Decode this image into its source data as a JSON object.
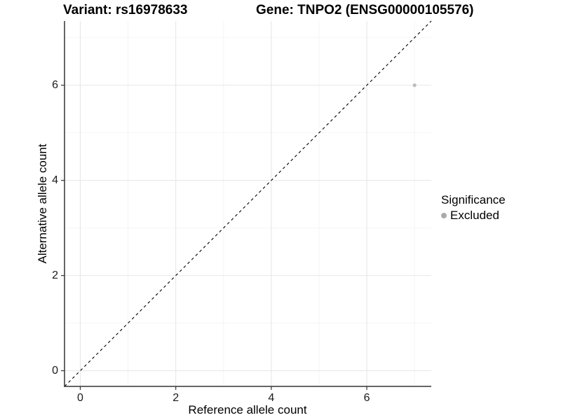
{
  "chart_data": {
    "type": "scatter",
    "title_left": "Variant: rs16978633",
    "title_right": "Gene: TNPO2 (ENSG00000105576)",
    "xlabel": "Reference allele count",
    "ylabel": "Alternative allele count",
    "xlim": [
      -0.33,
      7.35
    ],
    "ylim": [
      -0.33,
      7.35
    ],
    "x_ticks": [
      0,
      2,
      4,
      6
    ],
    "y_ticks": [
      0,
      2,
      4,
      6
    ],
    "x_minor_ticks": [
      1,
      3,
      5,
      7
    ],
    "y_minor_ticks": [
      1,
      3,
      5,
      7
    ],
    "grid": true,
    "points": [
      {
        "x": 7,
        "y": 6,
        "series": "Excluded"
      }
    ],
    "reference_line": {
      "type": "identity",
      "from": -0.33,
      "to": 7.35,
      "style": "dashed"
    },
    "legend": {
      "title": "Significance",
      "position": "right",
      "items": [
        {
          "label": "Excluded",
          "marker": "circle"
        }
      ]
    },
    "colors": {
      "point": "#bdbdbd",
      "legend_key": "#aaaaaa",
      "grid_major": "#e7e7e7",
      "grid_minor": "#f2f2f2",
      "axis_line": "#333333",
      "reference_line": "#000000"
    }
  }
}
